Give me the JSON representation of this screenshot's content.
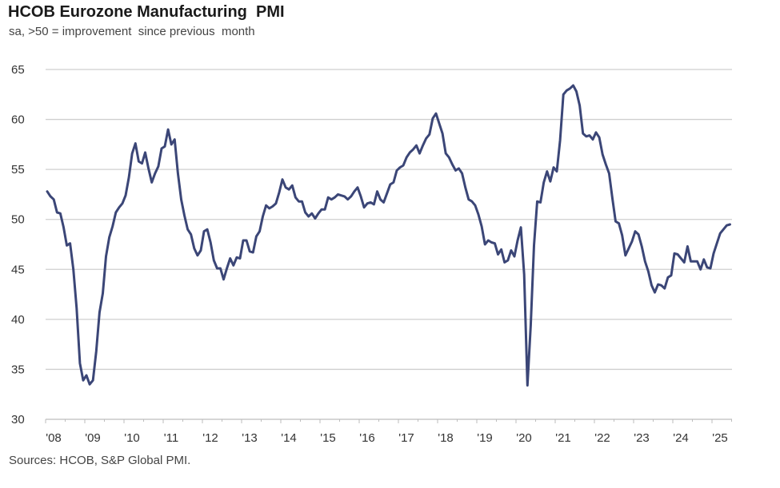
{
  "chart_data": {
    "type": "line",
    "title": "HCOB Eurozone Manufacturing  PMI",
    "subtitle": "sa, >50 = improvement  since previous  month",
    "source": "Sources: HCOB, S&P Global PMI.",
    "xlabel": "",
    "ylabel": "",
    "ylim": [
      30,
      65
    ],
    "yticks": [
      "65",
      "60",
      "55",
      "50",
      "45",
      "40",
      "35",
      "30"
    ],
    "xticks": [
      "'08",
      "'09",
      "'10",
      "'11",
      "'12",
      "'13",
      "'14",
      "'15",
      "'16",
      "'17",
      "'18",
      "'19",
      "'20",
      "'21",
      "'22",
      "'23",
      "'24",
      "'25"
    ],
    "grid": true,
    "line_color": "#3b4677",
    "x_start": "2008-01",
    "x_frequency": "monthly",
    "series": [
      {
        "values": [
          52.8,
          52.3,
          52.0,
          50.7,
          50.6,
          49.2,
          47.4,
          47.6,
          45.0,
          41.1,
          35.6,
          33.9,
          34.4,
          33.5,
          33.9,
          36.8,
          40.7,
          42.6,
          46.3,
          48.2,
          49.3,
          50.7,
          51.2,
          51.6,
          52.4,
          54.2,
          56.6,
          57.6,
          55.8,
          55.6,
          56.7,
          55.1,
          53.7,
          54.6,
          55.3,
          57.1,
          57.3,
          59.0,
          57.5,
          58.0,
          54.6,
          52.0,
          50.4,
          49.0,
          48.5,
          47.1,
          46.4,
          46.9,
          48.8,
          49.0,
          47.7,
          45.9,
          45.1,
          45.1,
          44.0,
          45.1,
          46.1,
          45.4,
          46.2,
          46.1,
          47.9,
          47.9,
          46.8,
          46.7,
          48.3,
          48.8,
          50.3,
          51.4,
          51.1,
          51.3,
          51.6,
          52.7,
          54.0,
          53.2,
          53.0,
          53.4,
          52.2,
          51.8,
          51.8,
          50.7,
          50.3,
          50.6,
          50.1,
          50.6,
          51.0,
          51.0,
          52.2,
          52.0,
          52.2,
          52.5,
          52.4,
          52.3,
          52.0,
          52.3,
          52.8,
          53.2,
          52.3,
          51.2,
          51.6,
          51.7,
          51.5,
          52.8,
          52.0,
          51.7,
          52.6,
          53.5,
          53.7,
          54.9,
          55.2,
          55.4,
          56.2,
          56.7,
          57.0,
          57.4,
          56.6,
          57.4,
          58.1,
          58.5,
          60.1,
          60.6,
          59.6,
          58.6,
          56.6,
          56.2,
          55.5,
          54.9,
          55.1,
          54.6,
          53.2,
          52.0,
          51.8,
          51.4,
          50.5,
          49.3,
          47.5,
          47.9,
          47.7,
          47.6,
          46.5,
          47.0,
          45.7,
          45.9,
          46.9,
          46.3,
          47.9,
          49.2,
          44.5,
          33.4,
          39.4,
          47.4,
          51.8,
          51.7,
          53.7,
          54.8,
          53.8,
          55.2,
          54.8,
          57.9,
          62.5,
          62.9,
          63.1,
          63.4,
          62.8,
          61.4,
          58.6,
          58.3,
          58.4,
          58.0,
          58.7,
          58.2,
          56.5,
          55.5,
          54.6,
          52.1,
          49.8,
          49.6,
          48.4,
          46.4,
          47.1,
          47.8,
          48.8,
          48.5,
          47.3,
          45.8,
          44.8,
          43.4,
          42.7,
          43.5,
          43.4,
          43.1,
          44.2,
          44.4,
          46.6,
          46.5,
          46.1,
          45.7,
          47.3,
          45.8,
          45.8,
          45.8,
          45.0,
          46.0,
          45.2,
          45.1,
          46.6,
          47.6,
          48.6,
          49.0,
          49.4,
          49.5
        ]
      }
    ]
  }
}
